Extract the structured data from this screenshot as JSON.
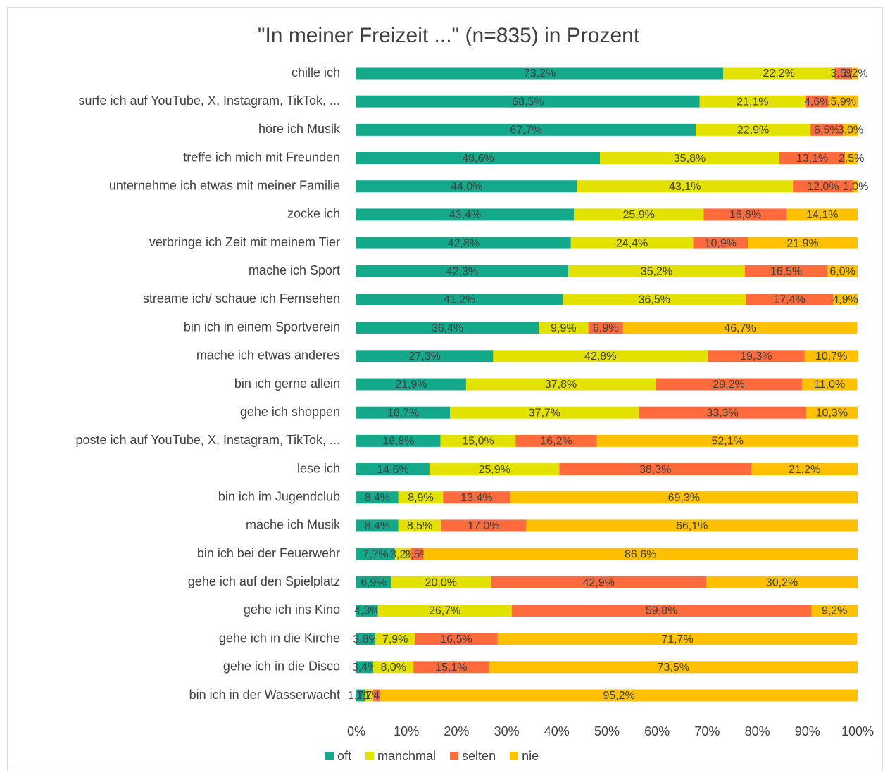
{
  "chart_data": {
    "type": "stacked-barh",
    "title": "\"In meiner Freizeit ...\" (n=835) in Prozent",
    "categories": [
      "chille ich",
      "surfe ich auf YouTube, X, Instagram, TikTok, ...",
      "höre ich Musik",
      "treffe ich mich mit Freunden",
      "unternehme ich etwas mit meiner Familie",
      "zocke ich",
      "verbringe ich Zeit mit meinem Tier",
      "mache ich Sport",
      "streame ich/ schaue ich Fernsehen",
      "bin ich in einem Sportverein",
      "mache ich etwas anderes",
      "bin ich gerne allein",
      "gehe ich shoppen",
      "poste ich auf YouTube, X, Instagram, TikTok, ...",
      "lese ich",
      "bin ich im Jugendclub",
      "mache ich Musik",
      "bin ich bei der Feuerwehr",
      "gehe ich auf den Spielplatz",
      "gehe ich ins Kino",
      "gehe ich in die Kirche",
      "gehe ich in die Disco",
      "bin ich in der Wasserwacht"
    ],
    "series": [
      {
        "name": "oft",
        "color": "#14a98b",
        "values": [
          73.2,
          68.5,
          67.7,
          48.6,
          44.0,
          43.4,
          42.8,
          42.3,
          41.2,
          36.4,
          27.3,
          21.9,
          18.7,
          16.8,
          14.6,
          8.4,
          8.4,
          7.7,
          6.9,
          4.3,
          3.8,
          3.4,
          1.7
        ],
        "value_labels": [
          "73,2%",
          "68,5%",
          "67,7%",
          "48,6%",
          "44,0%",
          "43,4%",
          "42,8%",
          "42,3%",
          "41,2%",
          "36,4%",
          "27,3%",
          "21,9%",
          "18,7%",
          "16,8%",
          "14,6%",
          "8,4%",
          "8,4%",
          "7,7%",
          "6,9%",
          "4,3%",
          "3,8%",
          "3,4%",
          "1,7%"
        ]
      },
      {
        "name": "manchmal",
        "color": "#e2e100",
        "values": [
          22.2,
          21.1,
          22.9,
          35.8,
          43.1,
          25.9,
          24.4,
          35.2,
          36.5,
          9.9,
          42.8,
          37.8,
          37.7,
          15.0,
          25.9,
          8.9,
          8.5,
          3.2,
          20.0,
          26.7,
          7.9,
          8.0,
          1.7
        ],
        "value_labels": [
          "22,2%",
          "21,1%",
          "22,9%",
          "35,8%",
          "43,1%",
          "25,9%",
          "24,4%",
          "35,2%",
          "36,5%",
          "9,9%",
          "42,8%",
          "37,8%",
          "37,7%",
          "15,0%",
          "25,9%",
          "8,9%",
          "8,5%",
          "3,2%",
          "20,0%",
          "26,7%",
          "7,9%",
          "8,0%",
          "1,7%"
        ]
      },
      {
        "name": "selten",
        "color": "#ff6b3d",
        "values": [
          3.5,
          4.6,
          6.5,
          13.1,
          12.0,
          16.6,
          10.9,
          16.5,
          17.4,
          6.9,
          19.3,
          29.2,
          33.3,
          16.2,
          38.3,
          13.4,
          17.0,
          2.5,
          42.9,
          59.8,
          16.5,
          15.1,
          1.4
        ],
        "value_labels": [
          "3,5%",
          "4,6%",
          "6,5%",
          "13,1%",
          "12,0%",
          "16,6%",
          "10,9%",
          "16,5%",
          "17,4%",
          "6,9%",
          "19,3%",
          "29,2%",
          "33,3%",
          "16,2%",
          "38,3%",
          "13,4%",
          "17,0%",
          "2,5%",
          "42,9%",
          "59,8%",
          "16,5%",
          "15,1%",
          "1,4%"
        ]
      },
      {
        "name": "nie",
        "color": "#ffc000",
        "values": [
          1.2,
          5.9,
          3.0,
          2.5,
          1.0,
          14.1,
          21.9,
          6.0,
          4.9,
          46.7,
          10.7,
          11.0,
          10.3,
          52.1,
          21.2,
          69.3,
          66.1,
          86.6,
          30.2,
          9.2,
          71.7,
          73.5,
          95.2
        ],
        "value_labels": [
          "1,2%",
          "5,9%",
          "3,0%",
          "2,5%",
          "1,0%",
          "14,1%",
          "21,9%",
          "6,0%",
          "4,9%",
          "46,7%",
          "10,7%",
          "11,0%",
          "10,3%",
          "52,1%",
          "21,2%",
          "69,3%",
          "66,1%",
          "86,6%",
          "30,2%",
          "9,2%",
          "71,7%",
          "73,5%",
          "95,2%"
        ]
      }
    ],
    "xlim": [
      0,
      100
    ],
    "xticks": [
      {
        "value": 0,
        "label": "0%"
      },
      {
        "value": 10,
        "label": "10%"
      },
      {
        "value": 20,
        "label": "20%"
      },
      {
        "value": 30,
        "label": "30%"
      },
      {
        "value": 40,
        "label": "40%"
      },
      {
        "value": 50,
        "label": "50%"
      },
      {
        "value": 60,
        "label": "60%"
      },
      {
        "value": 70,
        "label": "70%"
      },
      {
        "value": 80,
        "label": "80%"
      },
      {
        "value": 90,
        "label": "90%"
      },
      {
        "value": 100,
        "label": "100%"
      }
    ],
    "legend": "bottom"
  }
}
